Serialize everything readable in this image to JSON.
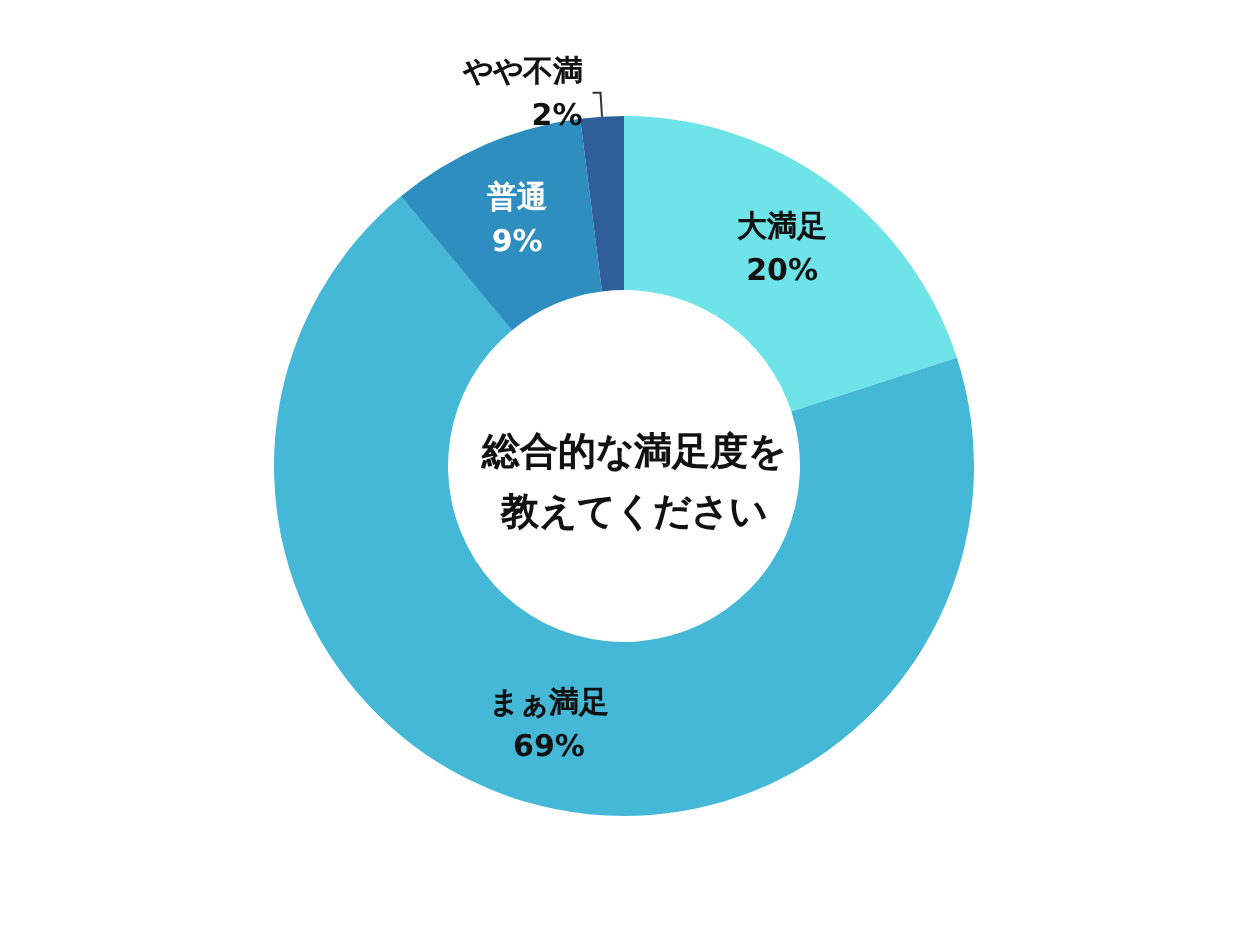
{
  "chart_data": {
    "type": "donut",
    "title": "総合的な満足度を教えてください",
    "categories": [
      "大満足",
      "まぁ満足",
      "普通",
      "やや不満"
    ],
    "values": [
      20,
      69,
      9,
      2
    ],
    "colors": [
      "#6ee3e8",
      "#44b8d6",
      "#2e8ec0",
      "#2e5f9a"
    ],
    "value_labels": [
      "20%",
      "69%",
      "9%",
      "2%"
    ]
  }
}
